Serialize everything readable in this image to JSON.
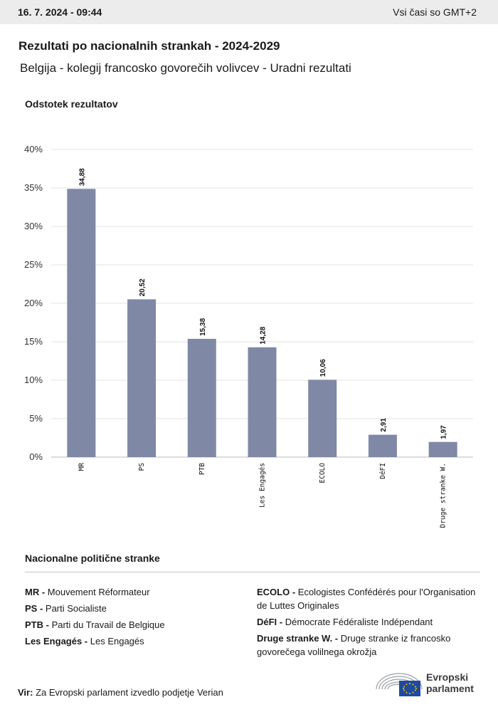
{
  "header": {
    "date": "16. 7. 2024 - 09:44",
    "timezone": "Vsi časi so GMT+2"
  },
  "title": "Rezultati po nacionalnih strankah - 2024-2029",
  "subtitle": "Belgija - kolegij francosko govorečih volivcev - Uradni rezultati",
  "chart_data": {
    "type": "bar",
    "ylabel": "Odstotek rezultatov",
    "ylim": [
      0,
      40
    ],
    "yticks": [
      "0%",
      "5%",
      "10%",
      "15%",
      "20%",
      "25%",
      "30%",
      "35%",
      "40%"
    ],
    "categories": [
      "MR",
      "PS",
      "PTB",
      "Les Engagés",
      "ECOLO",
      "DéFI",
      "Druge stranke W."
    ],
    "values": [
      34.88,
      20.52,
      15.38,
      14.28,
      10.06,
      2.91,
      1.97
    ],
    "value_labels": [
      "34,88",
      "20,52",
      "15,38",
      "14,28",
      "10,06",
      "2,91",
      "1,97"
    ],
    "bar_color": "#7f88a5",
    "grid": true
  },
  "legend": {
    "title": "Nacionalne politične stranke",
    "left": [
      {
        "abbr": "MR -",
        "name": "Mouvement Réformateur"
      },
      {
        "abbr": "PS -",
        "name": "Parti Socialiste"
      },
      {
        "abbr": "PTB -",
        "name": "Parti du Travail de Belgique"
      },
      {
        "abbr": "Les Engagés -",
        "name": "Les Engagés"
      }
    ],
    "right": [
      {
        "abbr": "ECOLO -",
        "name": "Ecologistes Confédérés pour l'Organisation de Luttes Originales"
      },
      {
        "abbr": "DéFI -",
        "name": "Démocrate Fédéraliste Indépendant"
      },
      {
        "abbr": "Druge stranke W. -",
        "name": "Druge stranke iz francosko govorečega volilnega okrožja"
      }
    ]
  },
  "source": {
    "label": "Vir:",
    "text": "Za Evropski parlament izvedlo podjetje Verian"
  },
  "logo": {
    "line1": "Evropski",
    "line2": "parlament",
    "icon": "european-parliament-logo"
  }
}
